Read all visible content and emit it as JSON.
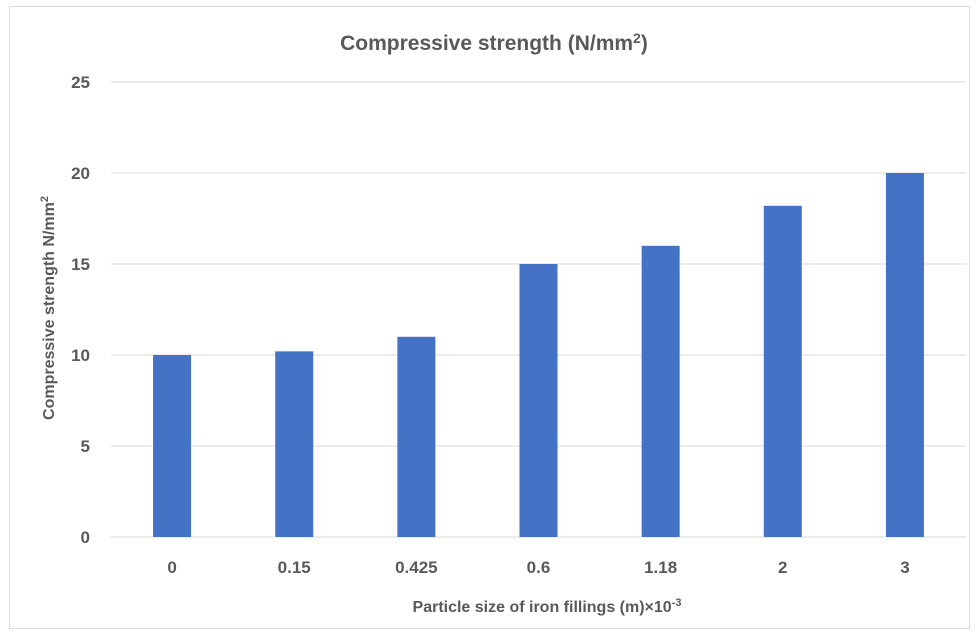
{
  "chart_data": {
    "type": "bar",
    "title": "Compressive strength (N/mm",
    "title_superscript": "2",
    "title_suffix": ")",
    "xlabel": "Particle size of iron fillings (m)×10",
    "xlabel_superscript": "-3",
    "ylabel": "Compressive strength N/mm",
    "ylabel_superscript": "2",
    "categories": [
      "0",
      "0.15",
      "0.425",
      "0.6",
      "1.18",
      "2",
      "3"
    ],
    "values": [
      10,
      10.2,
      11,
      15,
      16,
      18.2,
      20
    ],
    "ylim": [
      0,
      25
    ],
    "yticks": [
      "0",
      "5",
      "10",
      "15",
      "20",
      "25"
    ],
    "grid": true,
    "legend": "none",
    "bar_color": "#4472C4",
    "grid_color": "#D9D9D9",
    "text_color": "#595959"
  }
}
